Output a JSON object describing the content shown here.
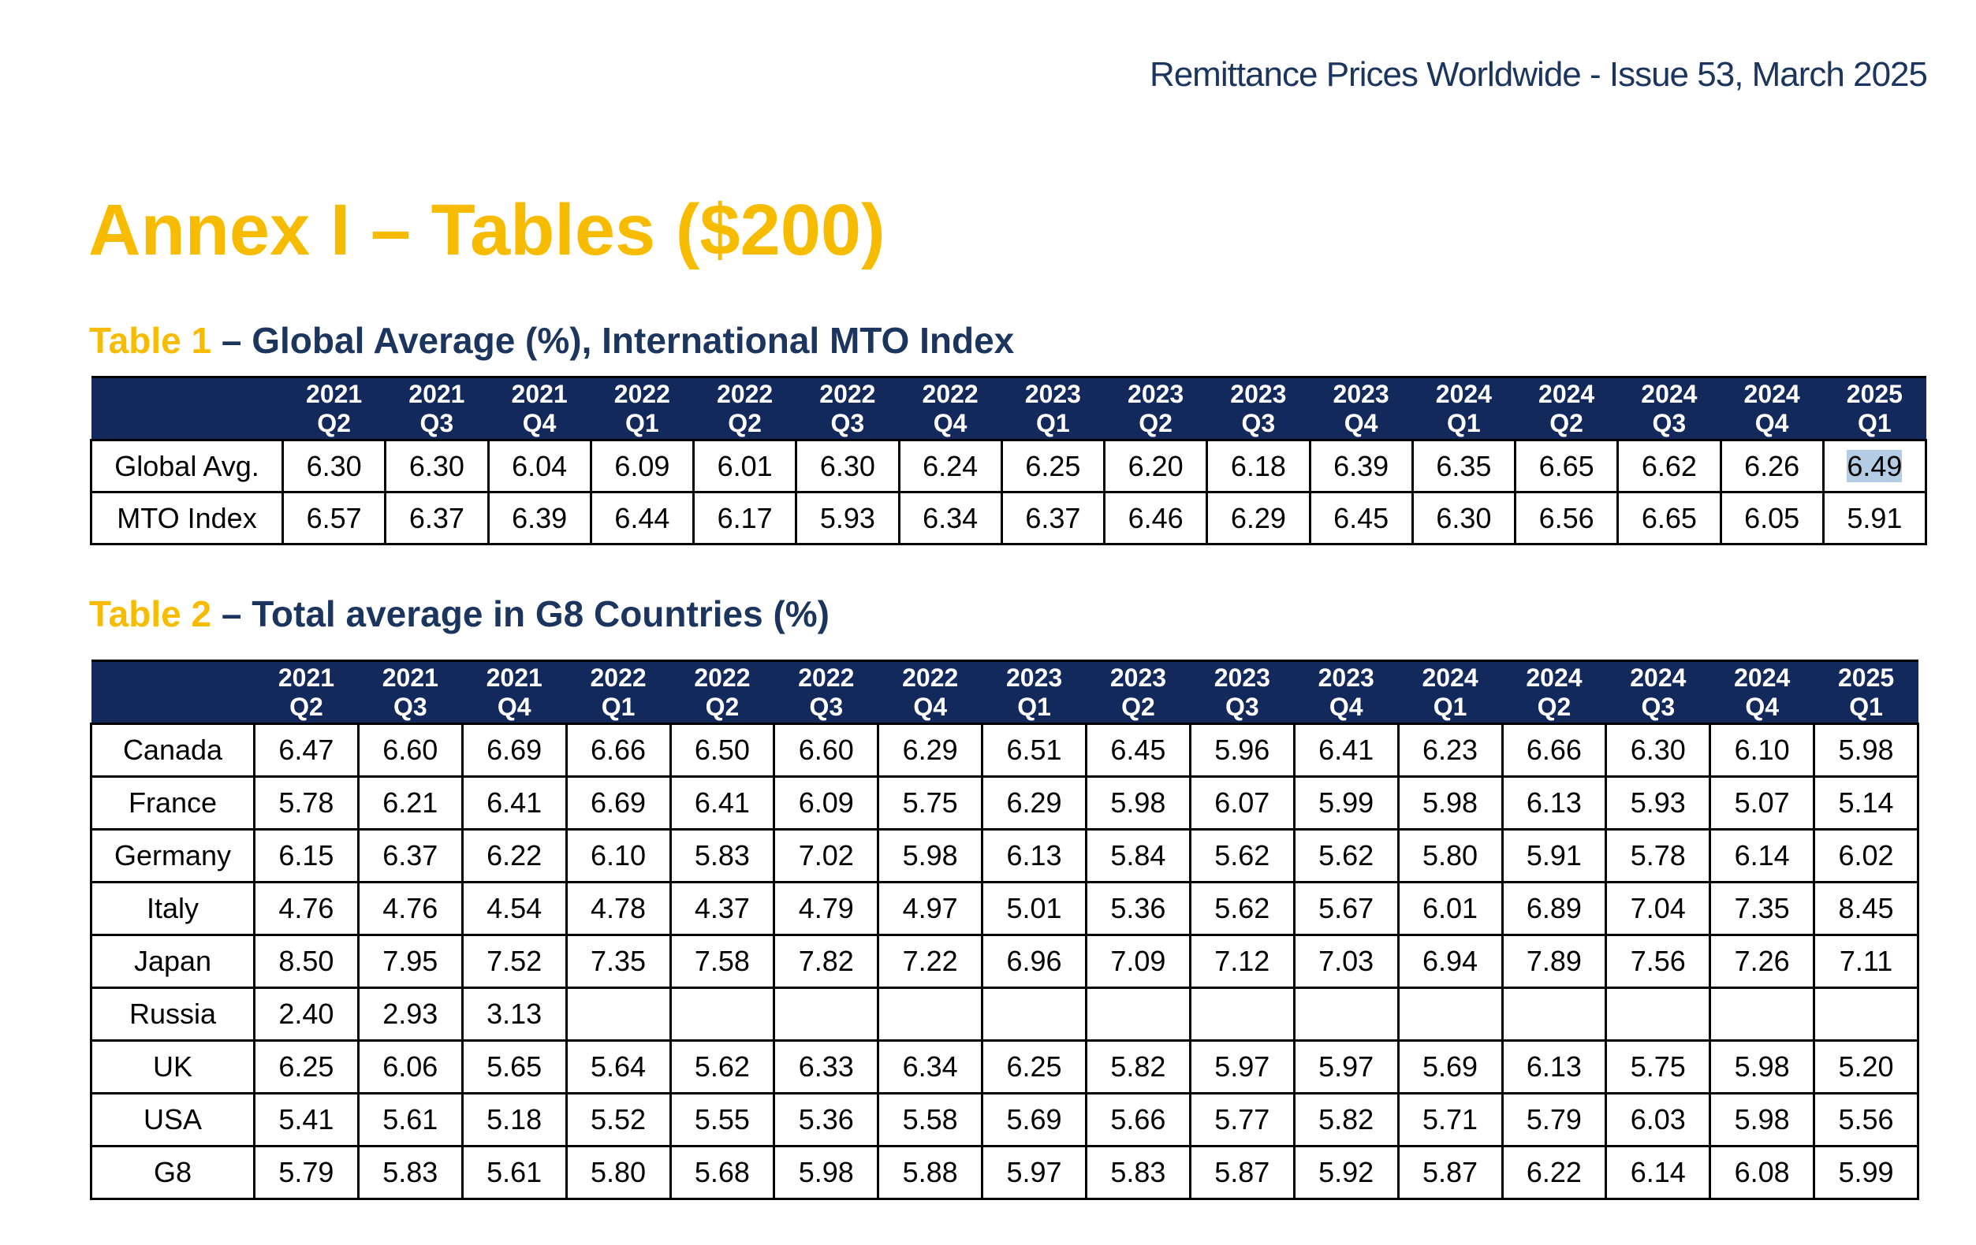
{
  "header": "Remittance Prices Worldwide - Issue 53, March 2025",
  "title": "Annex I – Tables ($200)",
  "tables": [
    {
      "label": "Table 1",
      "caption": "– Global Average (%), International MTO Index",
      "columns": [
        {
          "year": "2021",
          "quarter": "Q2"
        },
        {
          "year": "2021",
          "quarter": "Q3"
        },
        {
          "year": "2021",
          "quarter": "Q4"
        },
        {
          "year": "2022",
          "quarter": "Q1"
        },
        {
          "year": "2022",
          "quarter": "Q2"
        },
        {
          "year": "2022",
          "quarter": "Q3"
        },
        {
          "year": "2022",
          "quarter": "Q4"
        },
        {
          "year": "2023",
          "quarter": "Q1"
        },
        {
          "year": "2023",
          "quarter": "Q2"
        },
        {
          "year": "2023",
          "quarter": "Q3"
        },
        {
          "year": "2023",
          "quarter": "Q4"
        },
        {
          "year": "2024",
          "quarter": "Q1"
        },
        {
          "year": "2024",
          "quarter": "Q2"
        },
        {
          "year": "2024",
          "quarter": "Q3"
        },
        {
          "year": "2024",
          "quarter": "Q4"
        },
        {
          "year": "2025",
          "quarter": "Q1"
        }
      ],
      "rows": [
        {
          "name": "Global Avg.",
          "values": [
            "6.30",
            "6.30",
            "6.04",
            "6.09",
            "6.01",
            "6.30",
            "6.24",
            "6.25",
            "6.20",
            "6.18",
            "6.39",
            "6.35",
            "6.65",
            "6.62",
            "6.26",
            "6.49"
          ]
        },
        {
          "name": "MTO Index",
          "values": [
            "6.57",
            "6.37",
            "6.39",
            "6.44",
            "6.17",
            "5.93",
            "6.34",
            "6.37",
            "6.46",
            "6.29",
            "6.45",
            "6.30",
            "6.56",
            "6.65",
            "6.05",
            "5.91"
          ]
        }
      ]
    },
    {
      "label": "Table 2",
      "caption": "– Total average in G8 Countries (%)",
      "columns": [
        {
          "year": "2021",
          "quarter": "Q2"
        },
        {
          "year": "2021",
          "quarter": "Q3"
        },
        {
          "year": "2021",
          "quarter": "Q4"
        },
        {
          "year": "2022",
          "quarter": "Q1"
        },
        {
          "year": "2022",
          "quarter": "Q2"
        },
        {
          "year": "2022",
          "quarter": "Q3"
        },
        {
          "year": "2022",
          "quarter": "Q4"
        },
        {
          "year": "2023",
          "quarter": "Q1"
        },
        {
          "year": "2023",
          "quarter": "Q2"
        },
        {
          "year": "2023",
          "quarter": "Q3"
        },
        {
          "year": "2023",
          "quarter": "Q4"
        },
        {
          "year": "2024",
          "quarter": "Q1"
        },
        {
          "year": "2024",
          "quarter": "Q2"
        },
        {
          "year": "2024",
          "quarter": "Q3"
        },
        {
          "year": "2024",
          "quarter": "Q4"
        },
        {
          "year": "2025",
          "quarter": "Q1"
        }
      ],
      "rows": [
        {
          "name": "Canada",
          "values": [
            "6.47",
            "6.60",
            "6.69",
            "6.66",
            "6.50",
            "6.60",
            "6.29",
            "6.51",
            "6.45",
            "5.96",
            "6.41",
            "6.23",
            "6.66",
            "6.30",
            "6.10",
            "5.98"
          ]
        },
        {
          "name": "France",
          "values": [
            "5.78",
            "6.21",
            "6.41",
            "6.69",
            "6.41",
            "6.09",
            "5.75",
            "6.29",
            "5.98",
            "6.07",
            "5.99",
            "5.98",
            "6.13",
            "5.93",
            "5.07",
            "5.14"
          ]
        },
        {
          "name": "Germany",
          "values": [
            "6.15",
            "6.37",
            "6.22",
            "6.10",
            "5.83",
            "7.02",
            "5.98",
            "6.13",
            "5.84",
            "5.62",
            "5.62",
            "5.80",
            "5.91",
            "5.78",
            "6.14",
            "6.02"
          ]
        },
        {
          "name": "Italy",
          "values": [
            "4.76",
            "4.76",
            "4.54",
            "4.78",
            "4.37",
            "4.79",
            "4.97",
            "5.01",
            "5.36",
            "5.62",
            "5.67",
            "6.01",
            "6.89",
            "7.04",
            "7.35",
            "8.45"
          ]
        },
        {
          "name": "Japan",
          "values": [
            "8.50",
            "7.95",
            "7.52",
            "7.35",
            "7.58",
            "7.82",
            "7.22",
            "6.96",
            "7.09",
            "7.12",
            "7.03",
            "6.94",
            "7.89",
            "7.56",
            "7.26",
            "7.11"
          ]
        },
        {
          "name": "Russia",
          "values": [
            "2.40",
            "2.93",
            "3.13"
          ]
        },
        {
          "name": "UK",
          "values": [
            "6.25",
            "6.06",
            "5.65",
            "5.64",
            "5.62",
            "6.33",
            "6.34",
            "6.25",
            "5.82",
            "5.97",
            "5.97",
            "5.69",
            "6.13",
            "5.75",
            "5.98",
            "5.20"
          ]
        },
        {
          "name": "USA",
          "values": [
            "5.41",
            "5.61",
            "5.18",
            "5.52",
            "5.55",
            "5.36",
            "5.58",
            "5.69",
            "5.66",
            "5.77",
            "5.82",
            "5.71",
            "5.79",
            "6.03",
            "5.98",
            "5.56"
          ]
        },
        {
          "name": "G8",
          "values": [
            "5.79",
            "5.83",
            "5.61",
            "5.80",
            "5.68",
            "5.98",
            "5.88",
            "5.97",
            "5.83",
            "5.87",
            "5.92",
            "5.87",
            "6.22",
            "6.14",
            "6.08",
            "5.99"
          ]
        }
      ]
    }
  ]
}
